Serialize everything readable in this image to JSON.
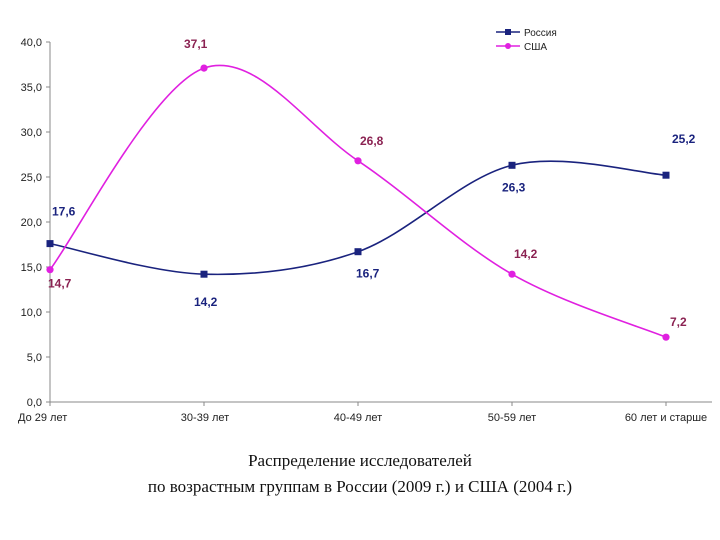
{
  "chart_data": {
    "type": "line",
    "categories": [
      "До 29 лет",
      "30-39 лет",
      "40-49 лет",
      "50-59 лет",
      "60 лет и старше"
    ],
    "series": [
      {
        "name": "Россия",
        "color": "#1a237e",
        "marker": "square",
        "values": [
          17.6,
          14.2,
          16.7,
          26.3,
          25.2
        ],
        "labels": [
          "17,6",
          "14,2",
          "16,7",
          "26,3",
          "25,2"
        ]
      },
      {
        "name": "США",
        "color": "#e020e0",
        "label_color": "#8b2252",
        "marker": "circle",
        "values": [
          14.7,
          37.1,
          26.8,
          14.2,
          7.2
        ],
        "labels": [
          "14,7",
          "37,1",
          "26,8",
          "14,2",
          "7,2"
        ]
      }
    ],
    "y_ticks": [
      "0,0",
      "5,0",
      "10,0",
      "15,0",
      "20,0",
      "25,0",
      "30,0",
      "35,0",
      "40,0"
    ],
    "ylim": [
      0,
      40
    ],
    "grid": false,
    "legend": "top-right",
    "smooth": true
  },
  "caption": {
    "line1": "Распределение исследователей",
    "line2": "по возрастным группам в России (2009 г.) и США (2004 г.)"
  }
}
